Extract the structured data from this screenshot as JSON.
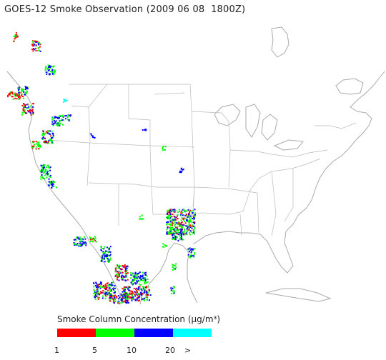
{
  "title": "GOES-12 Smoke Observation (2009 06 08  1800Z)",
  "legend": {
    "title_prefix": "Smoke Column Concentration (",
    "unit": "μg/m³",
    "title_suffix": ")",
    "bins": [
      {
        "color": "#ff0000",
        "label": "1"
      },
      {
        "color": "#00ff00",
        "label": "5"
      },
      {
        "color": "#0000ff",
        "label": "10"
      },
      {
        "color": "#00ffff",
        "label": "20"
      }
    ],
    "overflow_label": ">"
  },
  "colors": {
    "outline": "#aaaaaa",
    "text": "#222222"
  }
}
